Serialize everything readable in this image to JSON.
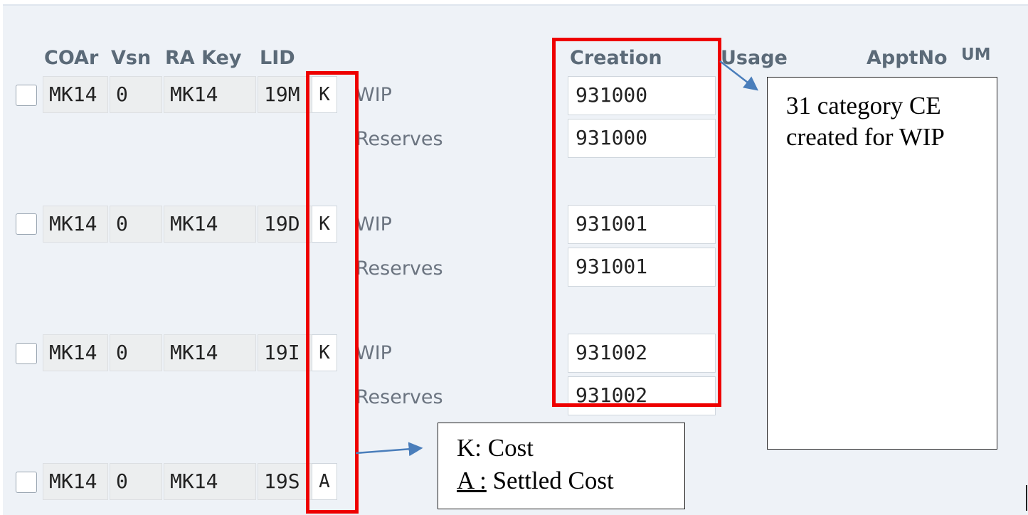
{
  "columns": {
    "coar": "COAr",
    "vsn": "Vsn",
    "ra_key": "RA Key",
    "lid": "LID",
    "creation": "Creation",
    "usage": "Usage",
    "apptno": "ApptNo",
    "um": "UM"
  },
  "rows": [
    {
      "coar": "MK14",
      "vsn": "0",
      "ra_key": "MK14",
      "lid": "19M",
      "cat": "K",
      "wip_label": "WIP",
      "reserves_label": "Reserves",
      "wip_creation": "931000",
      "reserves_creation": "931000"
    },
    {
      "coar": "MK14",
      "vsn": "0",
      "ra_key": "MK14",
      "lid": "19D",
      "cat": "K",
      "wip_label": "WIP",
      "reserves_label": "Reserves",
      "wip_creation": "931001",
      "reserves_creation": "931001"
    },
    {
      "coar": "MK14",
      "vsn": "0",
      "ra_key": "MK14",
      "lid": "19I",
      "cat": "K",
      "wip_label": "WIP",
      "reserves_label": "Reserves",
      "wip_creation": "931002",
      "reserves_creation": "931002"
    },
    {
      "coar": "MK14",
      "vsn": "0",
      "ra_key": "MK14",
      "lid": "19S",
      "cat": "A"
    }
  ],
  "annotations": {
    "ce_note_line1": "31 category CE",
    "ce_note_line2": "created for WIP",
    "legend_k": "K: Cost",
    "legend_a_key": "A :",
    "legend_a_text": " Settled Cost"
  },
  "colors": {
    "highlight": "#ee0000",
    "arrow": "#4a7ebb"
  }
}
